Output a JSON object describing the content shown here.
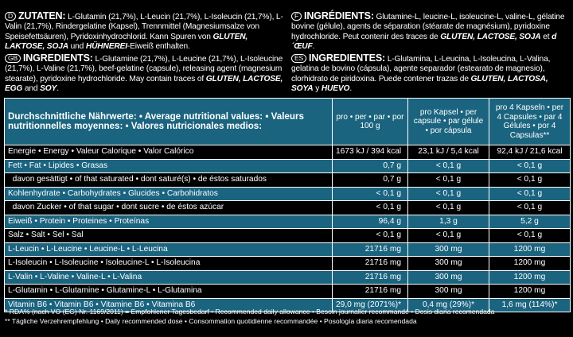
{
  "ingredients": {
    "de": {
      "code": "D",
      "heading": "ZUTATEN:",
      "text": "L-Glutamin (21,7%), L-Leucin (21,7%), L-Isoleucin (21,7%), L-Valin (21,7%), Rindergelatine (Kapsel), Trennmittel (Magnesiumsalze von Speisefettsäuren), Pyridoxinhydrochlorid. Kann Spuren von ",
      "allergens": "GLUTEN, LAKTOSE, SOJA",
      "joiner": " und ",
      "allergen_last": "HÜHNEREI",
      "ending": "-Eiweiß enthalten."
    },
    "fr": {
      "code": "F",
      "heading": "INGRÉDIENTS:",
      "text": "Glutamine-L, leucine-L, isoleucine-L, valine-L, gélatine bovine (gélule), agents de séparation (stéarate de magnésium), pyridoxine hydrochloride. Peut contenir des traces de ",
      "allergens": "GLUTEN, LACTOSE, SOJA",
      "joiner": " et ",
      "allergen_last": "d´ŒUF",
      "ending": "."
    },
    "en": {
      "code": "GB",
      "heading": "INGREDIENTS:",
      "text": "L-Glutamine (21,7%), L-Leucine (21,7%), L-Isoleucine (21,7%), L-Valine (21,7%), beef-gelatine (capsule), releasing agent (magnesium stearate), pyridoxine hydrochloride. May contain traces of ",
      "allergens": "GLUTEN, LACTOSE, EGG",
      "joiner": " and ",
      "allergen_last": "SOY",
      "ending": "."
    },
    "es": {
      "code": "ES",
      "heading": "INGREDIENTES:",
      "text": "L-Glutamina, L-Leucina, L-Isoleucina, L-Valina, gelatina de bovino (cápsula), agente separador (estearato de magnesio), clorhidrato de piridoxina. Puede contener trazas de ",
      "allergens": "GLUTEN, LACTOSA, SOYA",
      "joiner": " y ",
      "allergen_last": "HUEVO",
      "ending": "."
    }
  },
  "table": {
    "header": {
      "label": "Durchschnittliche Nährwerte: • Average nutritional values: • Valeurs nutritionnelles moyennes: • Valores nutricionales medios:",
      "col1": "pro • per • par • por 100 g",
      "col2": "pro Kapsel • per capsule • par gélule • por cápsula",
      "col3": "pro 4 Kapseln • per 4 Capsules • par 4 Gélules • por 4 Capsulas**"
    },
    "rows": [
      {
        "label": "Energie • Energy • Valeur Calorique • Valor Calórico",
        "v1": "1673 kJ / 394 kcal",
        "v2": "23,1 kJ / 5,4 kcal",
        "v3": "92,4 kJ / 21,6 kcal",
        "style": "black"
      },
      {
        "label": "Fett • Fat • Lipides • Grasas",
        "v1": "0,7 g",
        "v2": "< 0,1 g",
        "v3": "< 0,1 g",
        "style": "blue"
      },
      {
        "label": "  davon gesättigt • of that saturated • dont saturé(s) • de éstos saturados",
        "v1": "0,7 g",
        "v2": "< 0,1 g",
        "v3": "< 0,1 g",
        "style": "black"
      },
      {
        "label": "Kohlenhydrate • Carbohydrates • Glucides • Carbohidratos",
        "v1": "< 0,1 g",
        "v2": "< 0,1 g",
        "v3": "< 0,1 g",
        "style": "blue"
      },
      {
        "label": "  davon Zucker • of that sugar • dont sucre • de éstos azúcar",
        "v1": "< 0,1 g",
        "v2": "< 0,1 g",
        "v3": "< 0,1 g",
        "style": "black"
      },
      {
        "label": "Eiweiß • Protein • Proteines • Proteínas",
        "v1": "96,4 g",
        "v2": "1,3 g",
        "v3": "5,2 g",
        "style": "blue"
      },
      {
        "label": "Salz • Salt • Sel • Sal",
        "v1": "< 0,1 g",
        "v2": "< 0,1 g",
        "v3": "< 0,1 g",
        "style": "black"
      },
      {
        "label": "L-Leucin • L-Leucine • Leucine-L • L-Leucina",
        "v1": "21716 mg",
        "v2": "300 mg",
        "v3": "1200 mg",
        "style": "blue"
      },
      {
        "label": "L-Isoleucin • L-Isoleucine • Isoleucine-L • L-Isoleucina",
        "v1": "21716 mg",
        "v2": "300 mg",
        "v3": "1200 mg",
        "style": "black"
      },
      {
        "label": "L-Valin • L-Valine • Valine-L • L-Valina",
        "v1": "21716 mg",
        "v2": "300 mg",
        "v3": "1200 mg",
        "style": "blue"
      },
      {
        "label": "L-Glutamin • L-Glutamine • Glutamine-L • L-Glutamina",
        "v1": "21716 mg",
        "v2": "300 mg",
        "v3": "1200 mg",
        "style": "black"
      },
      {
        "label": "Vitamin B6 • Vitamin B6 • Vitamine B6 • Vitamina B6",
        "v1": "29,0 mg (2071%)*",
        "v2": "0,4 mg (29%)*",
        "v3": "1,6 mg (114%)*",
        "style": "blue"
      }
    ]
  },
  "footnotes": {
    "rda": "* RDA% (nach VO (EG) Nr. 1169/2011) = Empfohlener Tagesbedarf • Recommended daily allowance • Besoin journalier recommandé • Dosis diaria recomendada",
    "daily": "** Tägliche Verzehrempfehlung • Daily recommended dose • Consommation quotidienne recommandée • Posología diaria recomendada"
  }
}
